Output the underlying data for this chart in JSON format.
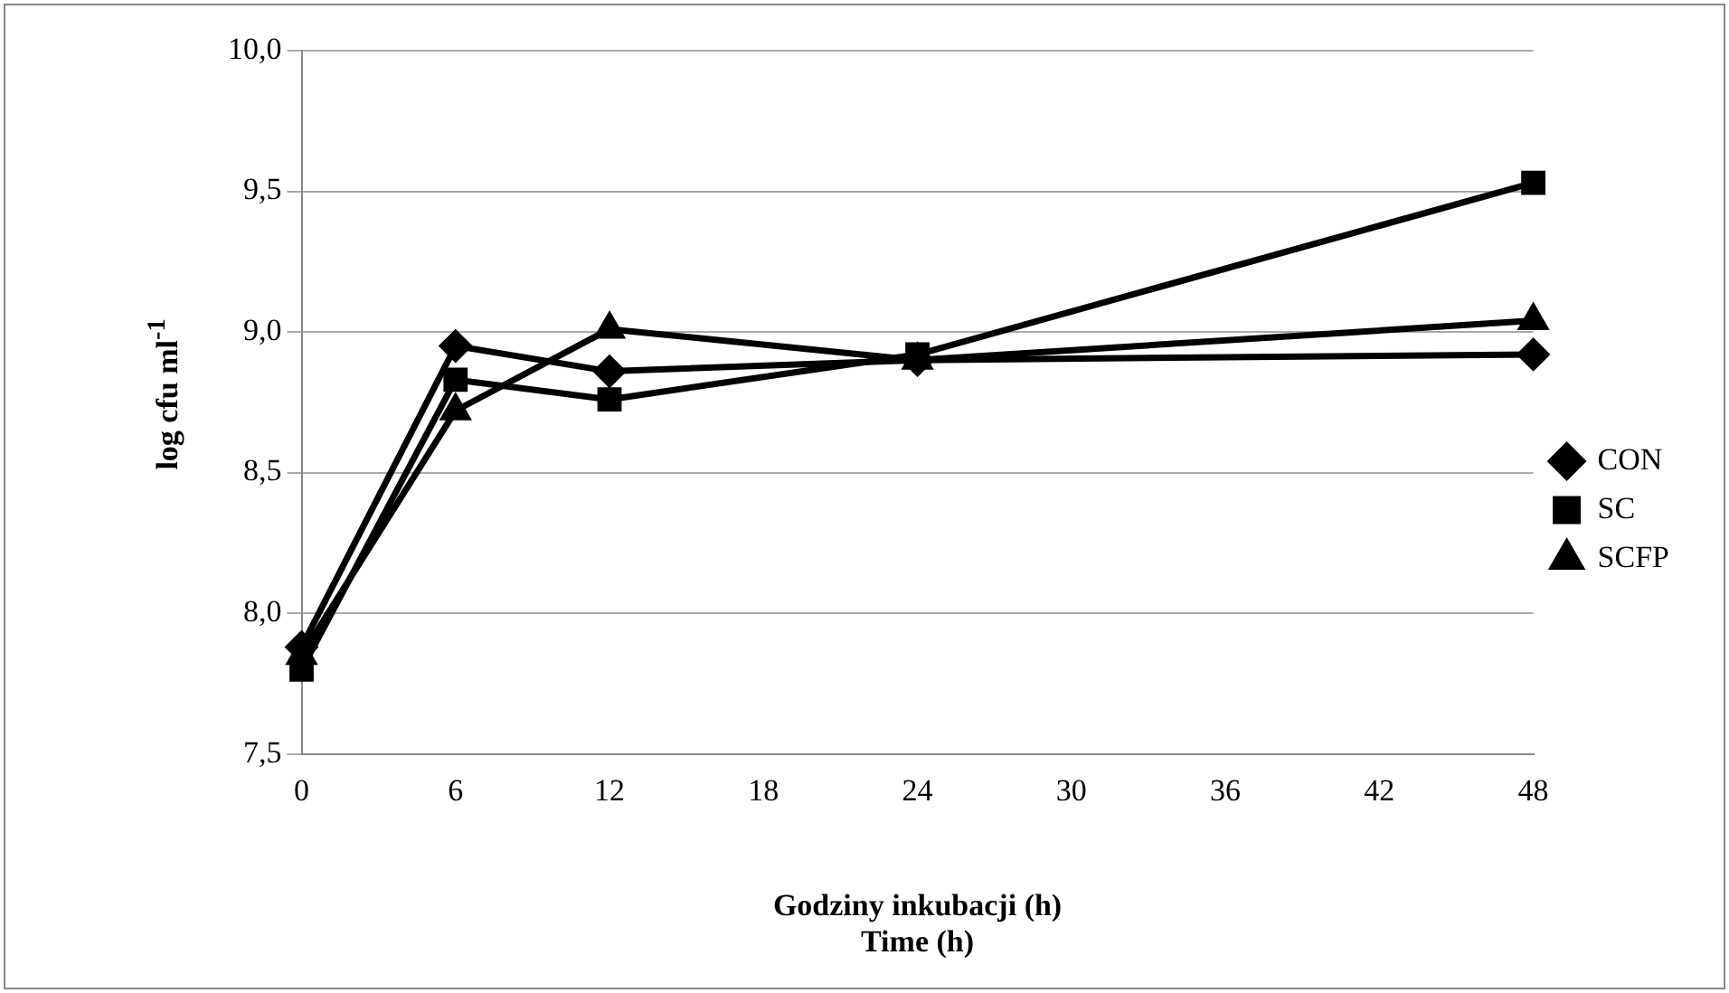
{
  "chart_data": {
    "type": "line",
    "xlabel": "Godziny inkubacji (h)\nTime (h)",
    "ylabel": "log cfu ml$^{-1}$",
    "x": [
      0,
      6,
      12,
      24,
      48
    ],
    "xlim": [
      0,
      48
    ],
    "xticks": [
      0,
      6,
      12,
      18,
      24,
      30,
      36,
      42,
      48
    ],
    "ylim": [
      7.5,
      10
    ],
    "yticks": [
      {
        "value": 7.5,
        "label": "7,5"
      },
      {
        "value": 8,
        "label": "8,0"
      },
      {
        "value": 8.5,
        "label": "8,5"
      },
      {
        "value": 9,
        "label": "9,0"
      },
      {
        "value": 9.5,
        "label": "9,5"
      },
      {
        "value": 10,
        "label": "10,0"
      }
    ],
    "grid": "y",
    "legend": "right",
    "series": [
      {
        "name": "CON",
        "color": "#000000",
        "marker": "diamond",
        "values": [
          7.88,
          8.95,
          8.86,
          8.9,
          8.92
        ]
      },
      {
        "name": "SC",
        "color": "#000000",
        "marker": "square",
        "values": [
          7.8,
          8.83,
          8.76,
          8.92,
          9.53
        ]
      },
      {
        "name": "SCFP",
        "color": "#000000",
        "marker": "triangle",
        "values": [
          7.85,
          8.72,
          9.01,
          8.9,
          9.04
        ]
      }
    ]
  }
}
